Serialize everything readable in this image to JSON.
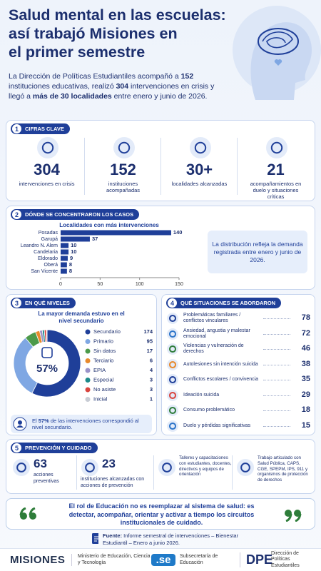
{
  "header": {
    "title_lines": [
      "Salud mental en las escuelas:",
      "así trabajó Misiones en",
      "el primer semestre"
    ],
    "intro": [
      {
        "text": "La Dirección de Políticas Estudiantiles acompañó a "
      },
      {
        "text": "152",
        "bold": true
      },
      {
        "text": " instituciones educativas, realizó "
      },
      {
        "text": "304",
        "bold": true
      },
      {
        "text": " intervenciones en crisis y llegó a "
      },
      {
        "text": "más de 30 localidades",
        "bold": true
      },
      {
        "text": " entre enero y junio de 2026."
      }
    ]
  },
  "sections": [
    {
      "number": "1",
      "title": "CIFRAS CLAVE"
    },
    {
      "number": "2",
      "title": "DÓNDE SE CONCENTRARON LOS CASOS"
    },
    {
      "number": "3",
      "title": "EN QUÉ NIVELES"
    },
    {
      "number": "4",
      "title": "QUÉ SITUACIONES SE ABORDARON"
    },
    {
      "number": "5",
      "title": "PREVENCIÓN Y CUIDADO"
    }
  ],
  "key_figures": [
    {
      "value": "304",
      "label": "intervenciones en crisis"
    },
    {
      "value": "152",
      "label": "instituciones acompañadas"
    },
    {
      "value": "30+",
      "label": "localidades alcanzadas"
    },
    {
      "value": "21",
      "label": "acompañamientos en duelo y situaciones críticas"
    }
  ],
  "chart_data": [
    {
      "type": "bar",
      "orientation": "horizontal",
      "title": "Localidades con más intervenciones",
      "categories": [
        "Posadas",
        "Garupá",
        "Leandro N. Alem",
        "Candelaria",
        "Eldorado",
        "Oberá",
        "San Vicente"
      ],
      "values": [
        140,
        37,
        10,
        10,
        9,
        8,
        8
      ],
      "color": "#1f3f99",
      "xlim": [
        0,
        150
      ],
      "xticks": [
        0,
        50,
        100,
        150
      ]
    },
    {
      "type": "pie",
      "donut": true,
      "subtitle": "La mayor demanda estuvo en el nivel secundario",
      "center_label": "57%",
      "categories": [
        "Secundario",
        "Primario",
        "Sin datos",
        "Terciario",
        "EPIA",
        "Especial",
        "No asiste",
        "Inicial"
      ],
      "values": [
        174,
        95,
        17,
        6,
        4,
        3,
        3,
        1
      ],
      "colors": [
        "#1f3f99",
        "#7fa7e3",
        "#4c9a4a",
        "#e88a2c",
        "#9b93c9",
        "#1d8a8a",
        "#d9453f",
        "#c8ccd4"
      ]
    }
  ],
  "distribution_note": "La distribución refleja la demanda registrada entre enero y junio de 2026.",
  "levels_note": [
    {
      "text": "El "
    },
    {
      "text": "57%",
      "bold": true
    },
    {
      "text": " de las intervenciones correspondió al nivel secundario."
    }
  ],
  "situations": [
    {
      "label": "Problemáticas familiares / conflictos vinculares",
      "value": 78
    },
    {
      "label": "Ansiedad, angustia y malestar emocional",
      "value": 72
    },
    {
      "label": "Violencias y vulneración de derechos",
      "value": 46
    },
    {
      "label": "Autolesiones sin intención suicida",
      "value": 38
    },
    {
      "label": "Conflictos escolares / convivencia",
      "value": 35
    },
    {
      "label": "Ideación suicida",
      "value": 29
    },
    {
      "label": "Consumo problemático",
      "value": 18
    },
    {
      "label": "Duelo y pérdidas significativas",
      "value": 15
    }
  ],
  "prevention": [
    {
      "value": "63",
      "label": "acciones preventivas"
    },
    {
      "value": "23",
      "label": "instituciones alcanzadas con acciones de prevención"
    },
    {
      "label": "Talleres y capacitaciones con estudiantes, docentes, directivos y equipos de orientación"
    },
    {
      "label": "Trabajo articulado con Salud Pública, CAPS, CGE, SPEPM, IPS, 911 y organismos de protección de derechos"
    }
  ],
  "quote": "El rol de Educación no es reemplazar al sistema de salud: es detectar, acompañar, orientar y activar a tiempo los circuitos institucionales de cuidado.",
  "source": {
    "label": "Fuente:",
    "text": "Informe semestral de intervenciones – Bienestar Estudiantil – Enero a junio 2026."
  },
  "footer": {
    "brand": "MISIONES",
    "ministry": "Ministerio de Educación, Ciencia y Tecnología",
    "se_logo": ".se",
    "se_name": "Subsecretaría de Educación",
    "dpe_logo": "DPE",
    "dpe_name": "Dirección de Políticas Estudiantiles"
  }
}
